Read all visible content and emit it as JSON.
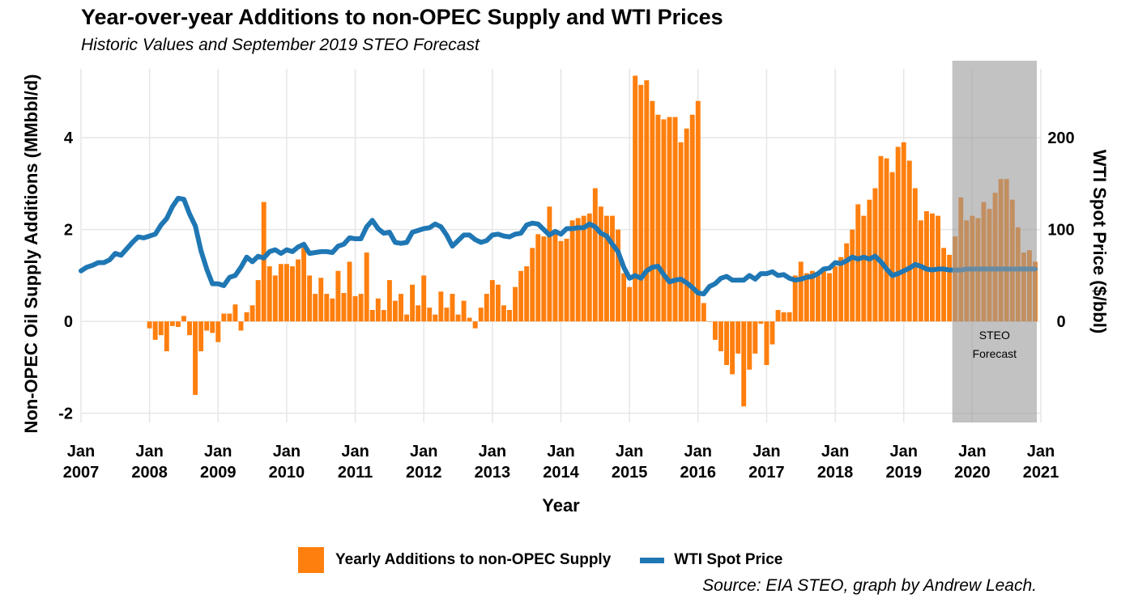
{
  "title": "Year-over-year Additions to non-OPEC Supply and WTI Prices",
  "subtitle": "Historic Values and September 2019 STEO Forecast",
  "source": "Source: EIA STEO, graph by Andrew Leach.",
  "colors": {
    "bars": "#ff7f0e",
    "line": "#1f77b4",
    "forecast": "#999999",
    "grid": "#e6e6e6"
  },
  "chart_data": {
    "type": "bar+line",
    "xlabel": "Year",
    "ylabel_left": "Non-OPEC Oil Supply Additions (MMbbl/d)",
    "ylabel_right": "WTI Spot Price ($/bbl)",
    "x_ticks": [
      {
        "line1": "Jan",
        "line2": "2007"
      },
      {
        "line1": "Jan",
        "line2": "2008"
      },
      {
        "line1": "Jan",
        "line2": "2009"
      },
      {
        "line1": "Jan",
        "line2": "2010"
      },
      {
        "line1": "Jan",
        "line2": "2011"
      },
      {
        "line1": "Jan",
        "line2": "2012"
      },
      {
        "line1": "Jan",
        "line2": "2013"
      },
      {
        "line1": "Jan",
        "line2": "2014"
      },
      {
        "line1": "Jan",
        "line2": "2015"
      },
      {
        "line1": "Jan",
        "line2": "2016"
      },
      {
        "line1": "Jan",
        "line2": "2017"
      },
      {
        "line1": "Jan",
        "line2": "2018"
      },
      {
        "line1": "Jan",
        "line2": "2019"
      },
      {
        "line1": "Jan",
        "line2": "2020"
      },
      {
        "line1": "Jan",
        "line2": "2021"
      }
    ],
    "x_start": "Jan 2007",
    "x_range_months": [
      0,
      168
    ],
    "ylim_left": [
      -2.2,
      5.5
    ],
    "y_ticks_left": [
      -2,
      0,
      2,
      4
    ],
    "ylim_right": [
      -110,
      275
    ],
    "y_ticks_right": [
      0,
      100,
      200
    ],
    "forecast_region": {
      "start_month": 152.5,
      "end_month": 168,
      "label_line1": "STEO",
      "label_line2": "Forecast"
    },
    "series": [
      {
        "name": "Yearly Additions to non-OPEC Supply",
        "axis": "left",
        "kind": "bar",
        "start_month": 12,
        "values": [
          -0.15,
          -0.4,
          -0.3,
          -0.65,
          -0.1,
          -0.12,
          0.12,
          -0.3,
          -1.6,
          -0.65,
          -0.2,
          -0.25,
          -0.45,
          0.17,
          0.17,
          0.37,
          -0.2,
          0.2,
          0.35,
          0.9,
          2.6,
          1.2,
          1.0,
          1.25,
          1.25,
          1.2,
          1.35,
          1.6,
          1.0,
          0.6,
          0.95,
          0.6,
          0.5,
          1.1,
          0.62,
          1.3,
          0.55,
          0.6,
          1.5,
          0.25,
          0.5,
          0.25,
          0.9,
          0.45,
          0.6,
          0.15,
          0.8,
          0.35,
          1.0,
          0.3,
          0.15,
          0.65,
          0.3,
          0.6,
          0.15,
          0.45,
          0.08,
          -0.15,
          0.3,
          0.6,
          0.9,
          0.8,
          0.35,
          0.25,
          0.75,
          1.1,
          1.2,
          1.6,
          1.9,
          1.85,
          2.5,
          1.95,
          1.75,
          1.8,
          2.2,
          2.25,
          2.3,
          2.35,
          2.9,
          2.5,
          2.3,
          2.3,
          2.0,
          1.05,
          0.75,
          5.35,
          5.15,
          5.25,
          4.8,
          4.5,
          4.4,
          4.45,
          4.45,
          3.9,
          4.2,
          4.5,
          4.8,
          0.4,
          0.0,
          -0.4,
          -0.65,
          -0.95,
          -1.15,
          -0.7,
          -1.85,
          -1.05,
          -0.7,
          -0.05,
          -0.95,
          -0.5,
          0.25,
          0.2,
          0.2,
          1.0,
          1.3,
          1.05,
          1.1,
          1.0,
          1.15,
          1.05,
          1.2,
          1.4,
          1.7,
          2.0,
          2.55,
          2.3,
          2.65,
          2.9,
          3.6,
          3.55,
          3.25,
          3.8,
          3.9,
          3.5,
          2.9,
          2.2,
          2.4,
          2.35,
          2.3,
          1.6,
          1.45,
          1.85,
          2.7,
          2.2,
          2.3,
          2.25,
          2.6,
          2.45,
          2.8,
          3.1,
          3.1,
          2.65,
          2.05,
          1.5,
          1.55,
          1.3
        ]
      },
      {
        "name": "WTI Spot Price",
        "axis": "right",
        "kind": "line",
        "points": [
          [
            0,
            55
          ],
          [
            1,
            59
          ],
          [
            2,
            61
          ],
          [
            3,
            64
          ],
          [
            4,
            64
          ],
          [
            5,
            67
          ],
          [
            6,
            74
          ],
          [
            7,
            72
          ],
          [
            8,
            79
          ],
          [
            9,
            86
          ],
          [
            10,
            92
          ],
          [
            11,
            91
          ],
          [
            12,
            93
          ],
          [
            13,
            95
          ],
          [
            14,
            105
          ],
          [
            15,
            112
          ],
          [
            16,
            125
          ],
          [
            17,
            134
          ],
          [
            18,
            133
          ],
          [
            19,
            117
          ],
          [
            20,
            104
          ],
          [
            21,
            77
          ],
          [
            22,
            57
          ],
          [
            23,
            41
          ],
          [
            24,
            41
          ],
          [
            25,
            39
          ],
          [
            26,
            48
          ],
          [
            27,
            50
          ],
          [
            28,
            59
          ],
          [
            29,
            70
          ],
          [
            30,
            65
          ],
          [
            31,
            71
          ],
          [
            32,
            69
          ],
          [
            33,
            76
          ],
          [
            34,
            78
          ],
          [
            35,
            74
          ],
          [
            36,
            78
          ],
          [
            37,
            76
          ],
          [
            38,
            81
          ],
          [
            39,
            84
          ],
          [
            40,
            74
          ],
          [
            41,
            75
          ],
          [
            42,
            76
          ],
          [
            43,
            76
          ],
          [
            44,
            75
          ],
          [
            45,
            82
          ],
          [
            46,
            84
          ],
          [
            47,
            91
          ],
          [
            48,
            90
          ],
          [
            49,
            90
          ],
          [
            50,
            103
          ],
          [
            51,
            110
          ],
          [
            52,
            101
          ],
          [
            53,
            96
          ],
          [
            54,
            97
          ],
          [
            55,
            86
          ],
          [
            56,
            85
          ],
          [
            57,
            86
          ],
          [
            58,
            97
          ],
          [
            59,
            99
          ],
          [
            60,
            101
          ],
          [
            61,
            102
          ],
          [
            62,
            106
          ],
          [
            63,
            103
          ],
          [
            64,
            94
          ],
          [
            65,
            82
          ],
          [
            66,
            88
          ],
          [
            67,
            94
          ],
          [
            68,
            94
          ],
          [
            69,
            89
          ],
          [
            70,
            86
          ],
          [
            71,
            88
          ],
          [
            72,
            94
          ],
          [
            73,
            95
          ],
          [
            74,
            93
          ],
          [
            75,
            92
          ],
          [
            76,
            95
          ],
          [
            77,
            96
          ],
          [
            78,
            105
          ],
          [
            79,
            107
          ],
          [
            80,
            106
          ],
          [
            81,
            100
          ],
          [
            82,
            94
          ],
          [
            83,
            98
          ],
          [
            84,
            95
          ],
          [
            85,
            101
          ],
          [
            86,
            101
          ],
          [
            87,
            102
          ],
          [
            88,
            102
          ],
          [
            89,
            106
          ],
          [
            90,
            103
          ],
          [
            91,
            96
          ],
          [
            92,
            93
          ],
          [
            93,
            84
          ],
          [
            94,
            76
          ],
          [
            95,
            59
          ],
          [
            96,
            47
          ],
          [
            97,
            50
          ],
          [
            98,
            47
          ],
          [
            99,
            55
          ],
          [
            100,
            59
          ],
          [
            101,
            60
          ],
          [
            102,
            51
          ],
          [
            103,
            43
          ],
          [
            104,
            45
          ],
          [
            105,
            46
          ],
          [
            106,
            42
          ],
          [
            107,
            37
          ],
          [
            108,
            31
          ],
          [
            109,
            30
          ],
          [
            110,
            38
          ],
          [
            111,
            41
          ],
          [
            112,
            47
          ],
          [
            113,
            49
          ],
          [
            114,
            45
          ],
          [
            115,
            45
          ],
          [
            116,
            45
          ],
          [
            117,
            50
          ],
          [
            118,
            46
          ],
          [
            119,
            52
          ],
          [
            120,
            52
          ],
          [
            121,
            54
          ],
          [
            122,
            50
          ],
          [
            123,
            51
          ],
          [
            124,
            47
          ],
          [
            125,
            45
          ],
          [
            126,
            46
          ],
          [
            127,
            48
          ],
          [
            128,
            49
          ],
          [
            129,
            52
          ],
          [
            130,
            57
          ],
          [
            131,
            58
          ],
          [
            132,
            64
          ],
          [
            133,
            63
          ],
          [
            134,
            66
          ],
          [
            135,
            70
          ],
          [
            136,
            68
          ],
          [
            137,
            70
          ],
          [
            138,
            68
          ],
          [
            139,
            71
          ],
          [
            140,
            65
          ],
          [
            141,
            57
          ],
          [
            142,
            50
          ],
          [
            143,
            52
          ],
          [
            144,
            55
          ],
          [
            145,
            58
          ],
          [
            146,
            62
          ],
          [
            147,
            60
          ],
          [
            148,
            57
          ],
          [
            149,
            56
          ],
          [
            150,
            57
          ],
          [
            151,
            57
          ],
          [
            152,
            56
          ],
          [
            153,
            56
          ],
          [
            154,
            56
          ],
          [
            155,
            57
          ],
          [
            156,
            57
          ],
          [
            157,
            57
          ],
          [
            158,
            57
          ],
          [
            159,
            57
          ],
          [
            160,
            57
          ],
          [
            161,
            57
          ],
          [
            162,
            57
          ],
          [
            163,
            57
          ],
          [
            164,
            57
          ],
          [
            165,
            57
          ],
          [
            166,
            57
          ],
          [
            167,
            57
          ]
        ]
      }
    ],
    "legend": {
      "position": "bottom",
      "items": [
        "Yearly Additions to non-OPEC Supply",
        "WTI Spot Price"
      ]
    }
  }
}
